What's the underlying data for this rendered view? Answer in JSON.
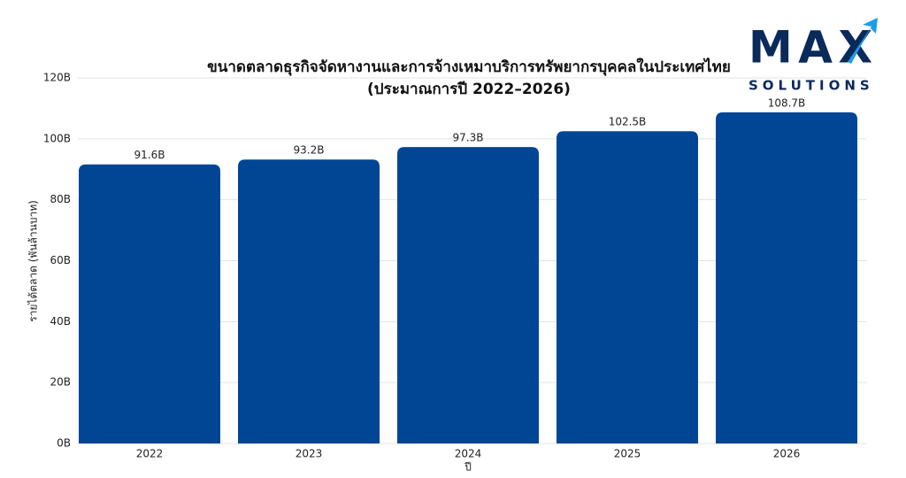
{
  "chart_data": {
    "type": "bar",
    "title": "ขนาดตลาดธุรกิจจัดหางานและการจ้างเหมาบริการทรัพยากรบุคคลในประเทศไทย",
    "subtitle": "(ประมาณการปี 2022–2026)",
    "x_label": "ปี",
    "y_label": "รายได้ตลาด (พันล้านบาท)",
    "categories": [
      "2022",
      "2023",
      "2024",
      "2025",
      "2026"
    ],
    "values": [
      91.6,
      93.2,
      97.3,
      102.5,
      108.7
    ],
    "value_labels": [
      "91.6B",
      "93.2B",
      "97.3B",
      "102.5B",
      "108.7B"
    ],
    "color": "#014694",
    "ylim": [
      0,
      120
    ],
    "yticks": [
      {
        "value": 0,
        "label": "0B"
      },
      {
        "value": 20,
        "label": "20B"
      },
      {
        "value": 40,
        "label": "40B"
      },
      {
        "value": 60,
        "label": "60B"
      },
      {
        "value": 80,
        "label": "80B"
      },
      {
        "value": 100,
        "label": "100B"
      },
      {
        "value": 120,
        "label": "120B"
      }
    ],
    "grid": true
  },
  "logo": {
    "text": "MAX",
    "tagline": "SOLUTIONS"
  }
}
